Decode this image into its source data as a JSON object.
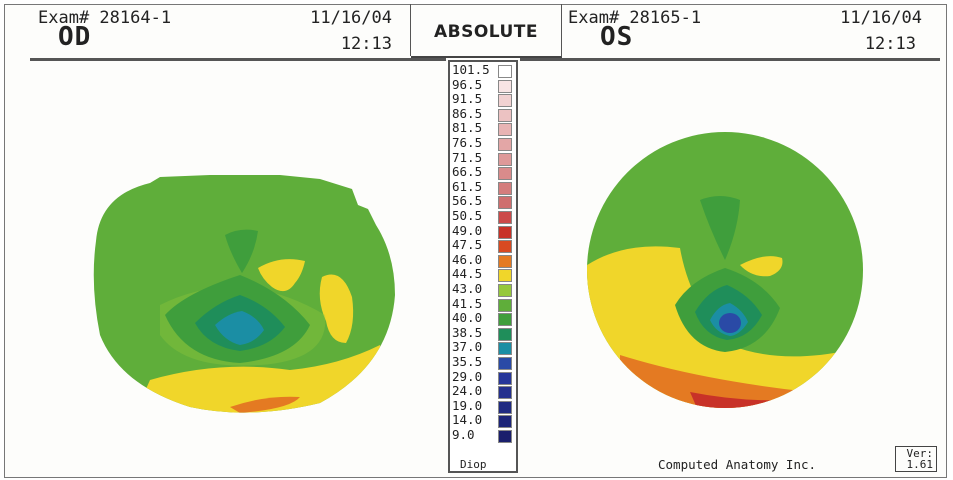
{
  "left_panel": {
    "exam": "Exam# 28164-1",
    "eye": "OD",
    "date": "11/16/04",
    "time": "12:13"
  },
  "center": {
    "title": "ABSOLUTE"
  },
  "right_panel": {
    "exam": "Exam# 28165-1",
    "eye": "OS",
    "date": "11/16/04",
    "time": "12:13"
  },
  "scale": {
    "unit": "Diop",
    "entries": [
      {
        "label": "101.5",
        "color": "#ffffff"
      },
      {
        "label": "96.5",
        "color": "#f8e4e4"
      },
      {
        "label": "91.5",
        "color": "#f2d2d2"
      },
      {
        "label": "86.5",
        "color": "#ecc2c2"
      },
      {
        "label": "81.5",
        "color": "#e8b4b4"
      },
      {
        "label": "76.5",
        "color": "#e3a6a6"
      },
      {
        "label": "71.5",
        "color": "#de9999"
      },
      {
        "label": "66.5",
        "color": "#d98b8b"
      },
      {
        "label": "61.5",
        "color": "#d47d7d"
      },
      {
        "label": "56.5",
        "color": "#cf6f6f"
      },
      {
        "label": "50.5",
        "color": "#cc4a4a"
      },
      {
        "label": "49.0",
        "color": "#c83228"
      },
      {
        "label": "47.5",
        "color": "#d84a22"
      },
      {
        "label": "46.0",
        "color": "#e47a22"
      },
      {
        "label": "44.5",
        "color": "#f0d62a"
      },
      {
        "label": "43.0",
        "color": "#96c83c"
      },
      {
        "label": "41.5",
        "color": "#5fae3a"
      },
      {
        "label": "40.0",
        "color": "#3f9e3c"
      },
      {
        "label": "38.5",
        "color": "#1f8e5a"
      },
      {
        "label": "37.0",
        "color": "#1b8ea4"
      },
      {
        "label": "35.5",
        "color": "#2a4aa6"
      },
      {
        "label": "29.0",
        "color": "#26369a"
      },
      {
        "label": "24.0",
        "color": "#24308e"
      },
      {
        "label": "19.0",
        "color": "#1f2a82"
      },
      {
        "label": "14.0",
        "color": "#1c2478"
      },
      {
        "label": "9.0",
        "color": "#1a1f6c"
      }
    ]
  },
  "footer": {
    "credit": "Computed Anatomy Inc.",
    "version_label": "Ver:",
    "version_value": "1.61"
  }
}
